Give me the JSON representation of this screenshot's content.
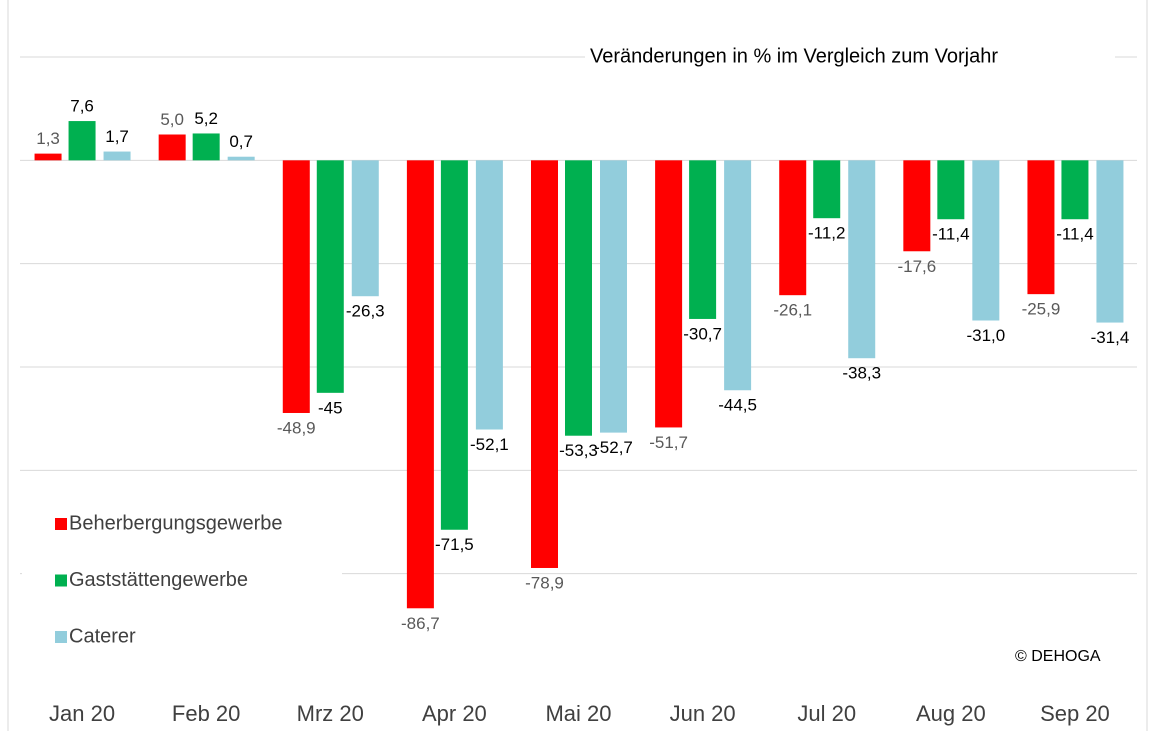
{
  "chart_data": {
    "type": "bar",
    "subtitle": "Veränderungen in % im Vergleich zum Vorjahr",
    "annotation": "© DEHOGA",
    "categories": [
      "Jan 20",
      "Feb 20",
      "Mrz 20",
      "Apr 20",
      "Mai 20",
      "Jun 20",
      "Jul 20",
      "Aug 20",
      "Sep 20"
    ],
    "series": [
      {
        "name": "Beherbergungsgewerbe",
        "color": "#ff0000",
        "values": [
          1.3,
          5.0,
          -48.9,
          -86.7,
          -78.9,
          -51.7,
          -26.1,
          -17.6,
          -25.9
        ],
        "value_labels": [
          "1,3",
          "5,0",
          "-48,9",
          "-86,7",
          "-78,9",
          "-51,7",
          "-26,1",
          "-17,6",
          "-25,9"
        ]
      },
      {
        "name": "Gaststättengewerbe",
        "color": "#00b050",
        "values": [
          7.6,
          5.2,
          -45,
          -71.5,
          -53.3,
          -30.7,
          -11.2,
          -11.4,
          -11.4
        ],
        "value_labels": [
          "7,6",
          "5,2",
          "-45",
          "-71,5",
          "-53,3",
          "-30,7",
          "-11,2",
          "-11,4",
          "-11,4"
        ]
      },
      {
        "name": "Caterer",
        "color": "#92cddc",
        "values": [
          1.7,
          0.7,
          -26.3,
          -52.1,
          -52.7,
          -44.5,
          -38.3,
          -31.0,
          -31.4
        ],
        "value_labels": [
          "1,7",
          "0,7",
          "-26,3",
          "-52,1",
          "-52,7",
          "-44,5",
          "-38,3",
          "-31,0",
          "-31,4"
        ]
      }
    ],
    "ylim": [
      -100,
      20
    ],
    "yticks": [
      20,
      0,
      -20,
      -40,
      -60,
      -80
    ],
    "grid": true,
    "legend": "lower left"
  }
}
